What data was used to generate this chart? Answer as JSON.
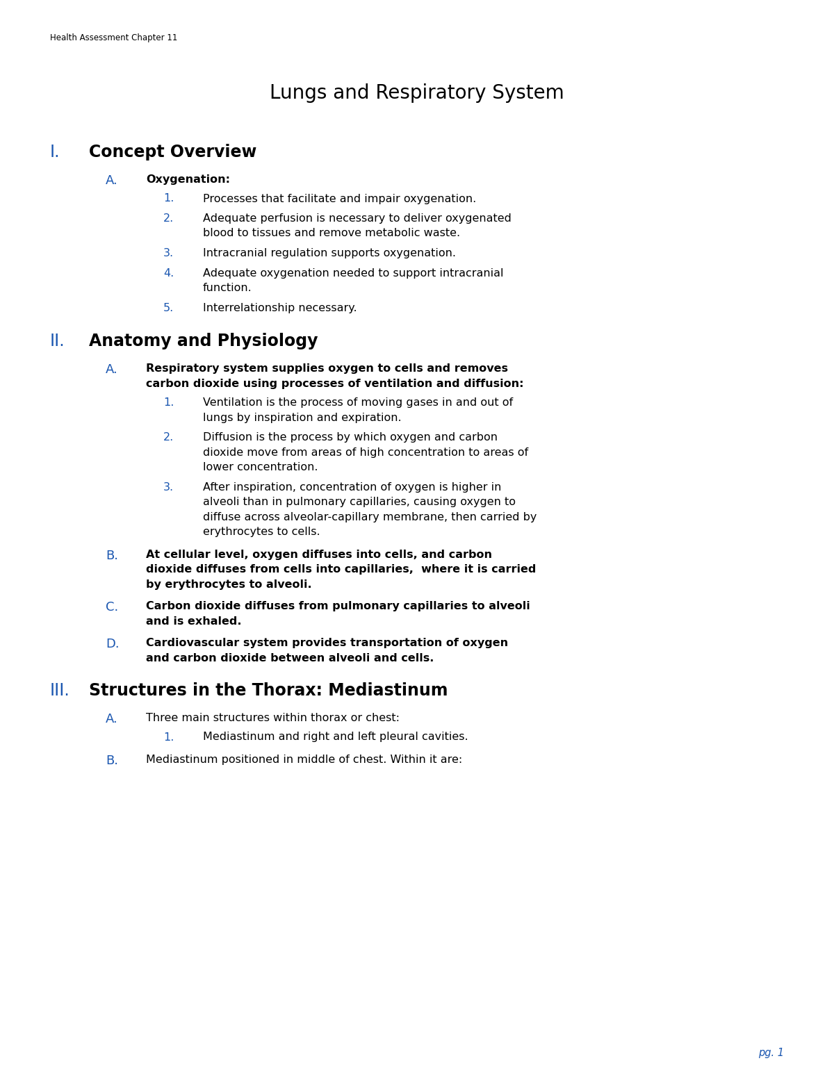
{
  "header": "Health Assessment Chapter 11",
  "title": "Lungs and Respiratory System",
  "background_color": "#ffffff",
  "header_color": "#000000",
  "title_color": "#000000",
  "roman_color": "#1a56b0",
  "alpha_color": "#1a56b0",
  "num_color": "#1a56b0",
  "body_color": "#000000",
  "page_num": "pg. 1",
  "page_num_color": "#1a56b0",
  "sections": [
    {
      "roman": "I.",
      "heading": "Concept Overview",
      "heading_bold": true,
      "items": [
        {
          "letter": "A.",
          "text": "Oxygenation:",
          "bold": true,
          "subitems": [
            {
              "num": "1.",
              "lines": [
                "Processes that facilitate and impair oxygenation."
              ]
            },
            {
              "num": "2.",
              "lines": [
                "Adequate perfusion is necessary to deliver oxygenated",
                "blood to tissues and remove metabolic waste."
              ]
            },
            {
              "num": "3.",
              "lines": [
                "Intracranial regulation supports oxygenation."
              ]
            },
            {
              "num": "4.",
              "lines": [
                "Adequate oxygenation needed to support intracranial",
                "function."
              ]
            },
            {
              "num": "5.",
              "lines": [
                "Interrelationship necessary."
              ]
            }
          ]
        }
      ]
    },
    {
      "roman": "II.",
      "heading": "Anatomy and Physiology",
      "heading_bold": true,
      "items": [
        {
          "letter": "A.",
          "text_lines": [
            "Respiratory system supplies oxygen to cells and removes",
            "carbon dioxide using processes of ventilation and diffusion:"
          ],
          "bold": true,
          "subitems": [
            {
              "num": "1.",
              "lines": [
                "Ventilation is the process of moving gases in and out of",
                "lungs by inspiration and expiration."
              ]
            },
            {
              "num": "2.",
              "lines": [
                "Diffusion is the process by which oxygen and carbon",
                "dioxide move from areas of high concentration to areas of",
                "lower concentration."
              ]
            },
            {
              "num": "3.",
              "lines": [
                "After inspiration, concentration of oxygen is higher in",
                "alveoli than in pulmonary capillaries, causing oxygen to",
                "diffuse across alveolar-capillary membrane, then carried by",
                "erythrocytes to cells."
              ]
            }
          ]
        },
        {
          "letter": "B.",
          "text_lines": [
            "At cellular level, oxygen diffuses into cells, and carbon",
            "dioxide diffuses from cells into capillaries,  where it is carried",
            "by erythrocytes to alveoli."
          ],
          "bold": true,
          "subitems": []
        },
        {
          "letter": "C.",
          "text_lines": [
            "Carbon dioxide diffuses from pulmonary capillaries to alveoli",
            "and is exhaled."
          ],
          "bold": true,
          "subitems": []
        },
        {
          "letter": "D.",
          "text_lines": [
            "Cardiovascular system provides transportation of oxygen",
            "and carbon dioxide between alveoli and cells."
          ],
          "bold": true,
          "subitems": []
        }
      ]
    },
    {
      "roman": "III.",
      "heading": "Structures in the Thorax: Mediastinum",
      "heading_bold": true,
      "items": [
        {
          "letter": "A.",
          "text_lines": [
            "Three main structures within thorax or chest:"
          ],
          "bold": false,
          "subitems": [
            {
              "num": "1.",
              "lines": [
                "Mediastinum and right and left pleural cavities."
              ]
            }
          ]
        },
        {
          "letter": "B.",
          "text_lines": [
            "Mediastinum positioned in middle of chest. Within it are:"
          ],
          "bold": false,
          "subitems": []
        }
      ]
    }
  ]
}
